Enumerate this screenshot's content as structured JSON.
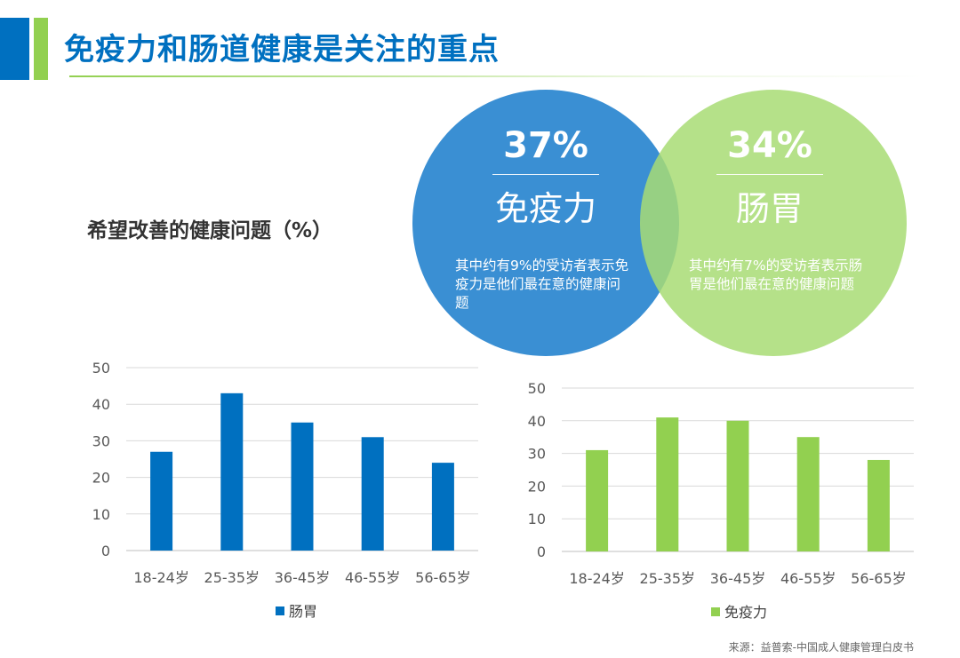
{
  "page": {
    "title": "免疫力和肠道健康是关注的重点",
    "subtitle": "希望改善的健康问题（%）",
    "source": "来源：益普索-中国成人健康管理白皮书"
  },
  "venn": {
    "left": {
      "percent": "37%",
      "name": "免疫力",
      "desc": "其中约有9%的受访者表示免疫力是他们最在意的健康问题",
      "color": "#3a8fd3"
    },
    "right": {
      "percent": "34%",
      "name": "肠胃",
      "desc": "其中约有7%的受访者表示肠胃是他们最在意的健康问题",
      "color": "#a8dc74"
    }
  },
  "colors": {
    "accent_blue": "#0070c0",
    "accent_green": "#92d050",
    "gut_bar": "#0070c0",
    "immunity_bar": "#92d050"
  },
  "chart_data": [
    {
      "type": "bar",
      "categories": [
        "18-24岁",
        "25-35岁",
        "36-45岁",
        "46-55岁",
        "56-65岁"
      ],
      "series": [
        {
          "name": "肠胃",
          "values": [
            27,
            43,
            35,
            31,
            24
          ],
          "color": "#0070c0"
        }
      ],
      "ylim": [
        0,
        50
      ],
      "yticks": [
        0,
        10,
        20,
        30,
        40,
        50
      ],
      "grid": true,
      "legend": "bottom"
    },
    {
      "type": "bar",
      "categories": [
        "18-24岁",
        "25-35岁",
        "36-45岁",
        "46-55岁",
        "56-65岁"
      ],
      "series": [
        {
          "name": "免疫力",
          "values": [
            31,
            41,
            40,
            35,
            28
          ],
          "color": "#92d050"
        }
      ],
      "ylim": [
        0,
        50
      ],
      "yticks": [
        0,
        10,
        20,
        30,
        40,
        50
      ],
      "grid": true,
      "legend": "bottom"
    }
  ]
}
